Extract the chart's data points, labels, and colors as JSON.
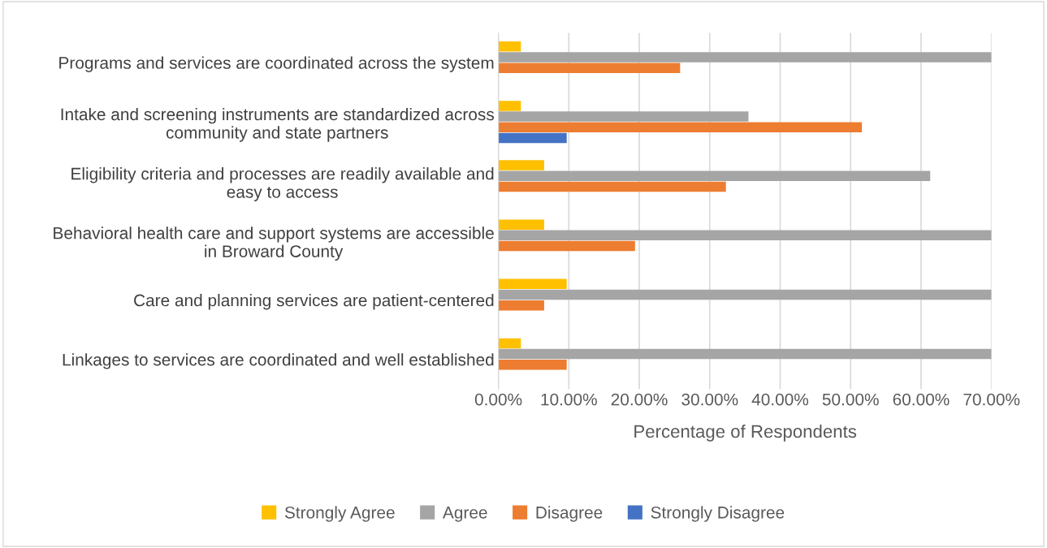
{
  "chart_data": {
    "type": "bar",
    "orientation": "horizontal",
    "categories": [
      "Programs and services are coordinated across the system",
      "Intake and screening instruments are standardized across\ncommunity and state partners",
      "Eligibility criteria and processes are readily available and\neasy to access",
      "Behavioral health care and support systems are accessible\nin Broward County",
      "Care and planning services are patient-centered",
      "Linkages to services are coordinated and well established"
    ],
    "series": [
      {
        "name": "Strongly Agree",
        "color": "#ffc000",
        "values": [
          3.2,
          3.2,
          6.5,
          6.5,
          9.7,
          3.2
        ]
      },
      {
        "name": "Agree",
        "color": "#a5a5a5",
        "values": [
          70,
          35.5,
          61.3,
          70,
          70,
          70
        ]
      },
      {
        "name": "Disagree",
        "color": "#ed7d31",
        "values": [
          25.8,
          51.6,
          32.3,
          19.4,
          6.5,
          9.7
        ]
      },
      {
        "name": "Strongly Disagree",
        "color": "#4472c4",
        "values": [
          null,
          9.7,
          null,
          null,
          null,
          null
        ]
      }
    ],
    "xlabel": "Percentage of Respondents",
    "xlim": [
      0,
      70
    ],
    "xticks": [
      {
        "value": 0,
        "label": "0.00%"
      },
      {
        "value": 10,
        "label": "10.00%"
      },
      {
        "value": 20,
        "label": "20.00%"
      },
      {
        "value": 30,
        "label": "30.00%"
      },
      {
        "value": 40,
        "label": "40.00%"
      },
      {
        "value": 50,
        "label": "50.00%"
      },
      {
        "value": 60,
        "label": "60.00%"
      },
      {
        "value": 70,
        "label": "70.00%"
      }
    ],
    "grid": "x",
    "legend": "bottom"
  }
}
